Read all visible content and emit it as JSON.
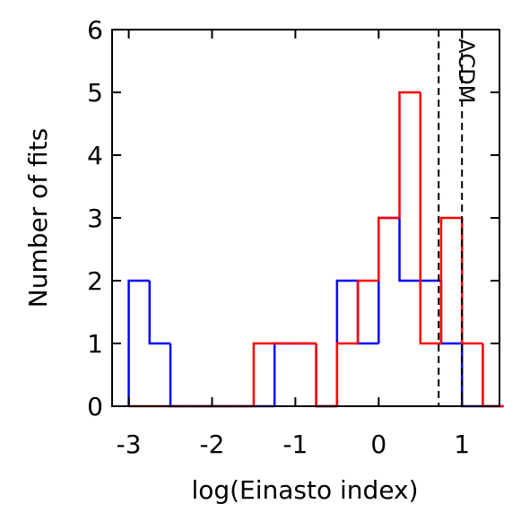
{
  "chart_data": {
    "type": "histogram",
    "xlabel": "log(Einasto index)",
    "ylabel": "Number of fits",
    "bins": [
      -3,
      -2.75,
      -2.5,
      -2.25,
      -2,
      -1.75,
      -1.5,
      -1.25,
      -1,
      -0.75,
      -0.5,
      -0.25,
      0,
      0.25,
      0.5,
      0.75,
      1,
      1.25,
      1.5
    ],
    "series": [
      {
        "color": "#0000ff",
        "values": [
          2,
          1,
          0,
          0,
          0,
          0,
          0,
          1,
          1,
          0,
          2,
          1,
          3,
          2,
          2,
          1,
          0,
          0
        ]
      },
      {
        "color": "#ff0000",
        "values": [
          0,
          0,
          0,
          0,
          0,
          0,
          1,
          1,
          1,
          0,
          1,
          2,
          3,
          5,
          1,
          3,
          1,
          0
        ]
      }
    ],
    "xlim": [
      -3.2,
      1.45
    ],
    "ylim": [
      0,
      6
    ],
    "xticks": [
      -3,
      -2,
      -1,
      0,
      1
    ],
    "yticks": [
      0,
      1,
      2,
      3,
      4,
      5,
      6
    ],
    "vlines": [
      0.72,
      1.0
    ],
    "vline_label": "ΛCDM"
  }
}
